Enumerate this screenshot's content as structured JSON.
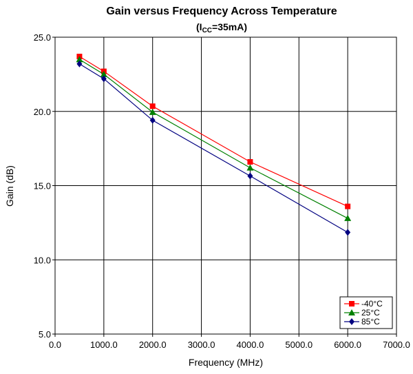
{
  "chart_data": {
    "type": "line",
    "title": "Gain versus Frequency Across Temperature",
    "subtitle": {
      "prefix": "(I",
      "subscript": "CC",
      "suffix": "=35mA)"
    },
    "xlabel": "Frequency (MHz)",
    "ylabel": "Gain (dB)",
    "xlim": [
      0,
      7000
    ],
    "ylim": [
      5,
      25
    ],
    "x_ticks": [
      0,
      1000,
      2000,
      3000,
      4000,
      5000,
      6000,
      7000
    ],
    "x_tick_labels": [
      "0.0",
      "1000.0",
      "2000.0",
      "3000.0",
      "4000.0",
      "5000.0",
      "6000.0",
      "7000.0"
    ],
    "y_ticks": [
      5,
      10,
      15,
      20,
      25
    ],
    "y_tick_labels": [
      "5.0",
      "10.0",
      "15.0",
      "20.0",
      "25.0"
    ],
    "grid": true,
    "legend_position": "bottom-right",
    "x": [
      500,
      1000,
      2000,
      4000,
      6000
    ],
    "series": [
      {
        "name": "-40°C",
        "color": "#ff0000",
        "marker": "square",
        "values": [
          23.7,
          22.7,
          20.35,
          16.6,
          13.6
        ]
      },
      {
        "name": "25°C",
        "color": "#008000",
        "marker": "triangle",
        "values": [
          23.5,
          22.5,
          19.95,
          16.2,
          12.8
        ]
      },
      {
        "name": "85°C",
        "color": "#000080",
        "marker": "diamond",
        "values": [
          23.2,
          22.2,
          19.4,
          15.65,
          11.85
        ]
      }
    ]
  }
}
